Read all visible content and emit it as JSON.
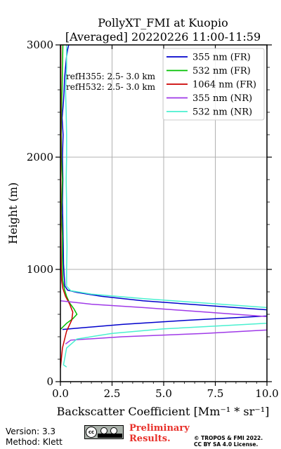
{
  "chart_data": {
    "type": "line",
    "title_line1": "PollyXT_FMI at Kuopio",
    "title_line2": "[Averaged] 20220226 11:00-11:59",
    "xlabel": "Backscatter Coefficient [Mm⁻¹ * sr⁻¹]",
    "ylabel": "Height (m)",
    "xlim": [
      0,
      10
    ],
    "ylim": [
      0,
      3000
    ],
    "xticks": [
      0,
      2.5,
      5,
      7.5,
      10
    ],
    "xtick_labels": [
      "0.0",
      "2.5",
      "5.0",
      "7.5",
      "10.0"
    ],
    "yticks": [
      0,
      1000,
      2000,
      3000
    ],
    "ytick_labels": [
      "0",
      "1000",
      "2000",
      "3000"
    ],
    "grid": true,
    "legend_position": "top-right",
    "annotations": [
      "refH355:  2.5- 3.0 km",
      "refH532:  2.5- 3.0 km"
    ],
    "series": [
      {
        "name": "355 nm (FR)",
        "color": "#0000cc",
        "points": [
          [
            0.1,
            465
          ],
          [
            3,
            510
          ],
          [
            6,
            545
          ],
          [
            10,
            585
          ],
          [
            10,
            640
          ],
          [
            7,
            680
          ],
          [
            4,
            720
          ],
          [
            2,
            760
          ],
          [
            0.8,
            795
          ],
          [
            0.35,
            815
          ],
          [
            0.22,
            850
          ],
          [
            0.18,
            950
          ],
          [
            0.15,
            1050
          ],
          [
            0.14,
            1200
          ],
          [
            0.12,
            1400
          ],
          [
            0.1,
            1600
          ],
          [
            0.12,
            1800
          ],
          [
            0.1,
            2000
          ],
          [
            0.13,
            2200
          ],
          [
            0.08,
            2350
          ],
          [
            0.15,
            2500
          ],
          [
            0.18,
            2600
          ],
          [
            0.2,
            2700
          ],
          [
            0.25,
            2800
          ],
          [
            0.3,
            2900
          ],
          [
            0.35,
            2960
          ],
          [
            0.4,
            3000
          ]
        ]
      },
      {
        "name": "532 nm (FR)",
        "color": "#00c000",
        "points": [
          [
            0.0,
            465
          ],
          [
            0.3,
            520
          ],
          [
            0.6,
            560
          ],
          [
            0.8,
            600
          ],
          [
            0.65,
            650
          ],
          [
            0.45,
            700
          ],
          [
            0.3,
            760
          ],
          [
            0.2,
            820
          ],
          [
            0.12,
            900
          ],
          [
            0.1,
            1100
          ],
          [
            0.1,
            1300
          ],
          [
            0.05,
            1500
          ],
          [
            0.08,
            1700
          ],
          [
            0.1,
            1800
          ],
          [
            0.05,
            2000
          ],
          [
            0.04,
            2200
          ],
          [
            0.05,
            2400
          ],
          [
            0.08,
            2600
          ],
          [
            0.1,
            2800
          ],
          [
            0.12,
            3000
          ]
        ]
      },
      {
        "name": "1064 nm (FR)",
        "color": "#cc0000",
        "points": [
          [
            0.0,
            120
          ],
          [
            0.1,
            300
          ],
          [
            0.3,
            450
          ],
          [
            0.55,
            550
          ],
          [
            0.6,
            620
          ],
          [
            0.45,
            690
          ],
          [
            0.25,
            760
          ],
          [
            0.12,
            830
          ],
          [
            0.06,
            900
          ],
          [
            0.04,
            1000
          ],
          [
            0.03,
            1200
          ],
          [
            0.02,
            1500
          ],
          [
            0.02,
            2000
          ],
          [
            0.02,
            2500
          ],
          [
            0.02,
            3000
          ]
        ]
      },
      {
        "name": "355 nm (NR)",
        "color": "#9f39e8",
        "points": [
          [
            0.25,
            335
          ],
          [
            0.5,
            370
          ],
          [
            3,
            400
          ],
          [
            7,
            430
          ],
          [
            10,
            460
          ],
          [
            10,
            580
          ],
          [
            7,
            620
          ],
          [
            4,
            660
          ],
          [
            1.5,
            690
          ],
          [
            0.0,
            720
          ]
        ]
      },
      {
        "name": "532 nm (NR)",
        "color": "#49f0d0",
        "points": [
          [
            0.3,
            130
          ],
          [
            0.15,
            150
          ],
          [
            0.2,
            200
          ],
          [
            0.3,
            300
          ],
          [
            0.8,
            380
          ],
          [
            2.5,
            430
          ],
          [
            5,
            470
          ],
          [
            8,
            500
          ],
          [
            10,
            520
          ],
          [
            10,
            660
          ],
          [
            7,
            700
          ],
          [
            4,
            740
          ],
          [
            1.5,
            780
          ],
          [
            0.5,
            810
          ],
          [
            0.3,
            850
          ],
          [
            0.3,
            1000
          ],
          [
            0.32,
            1200
          ],
          [
            0.3,
            1400
          ],
          [
            0.3,
            1600
          ],
          [
            0.28,
            1800
          ],
          [
            0.3,
            2000
          ],
          [
            0.3,
            2200
          ],
          [
            0.28,
            2400
          ],
          [
            0.25,
            2600
          ],
          [
            0.3,
            2800
          ],
          [
            0.3,
            3000
          ]
        ]
      }
    ]
  },
  "footer": {
    "version": "Version: 3.3",
    "method": "Method: Klett",
    "preliminary_line1": "Preliminary",
    "preliminary_line2": "Results.",
    "copyright_line1": "© TROPOS & FMI 2022.",
    "copyright_line2": "CC BY SA 4.0 License.",
    "cc_label": "cc"
  }
}
